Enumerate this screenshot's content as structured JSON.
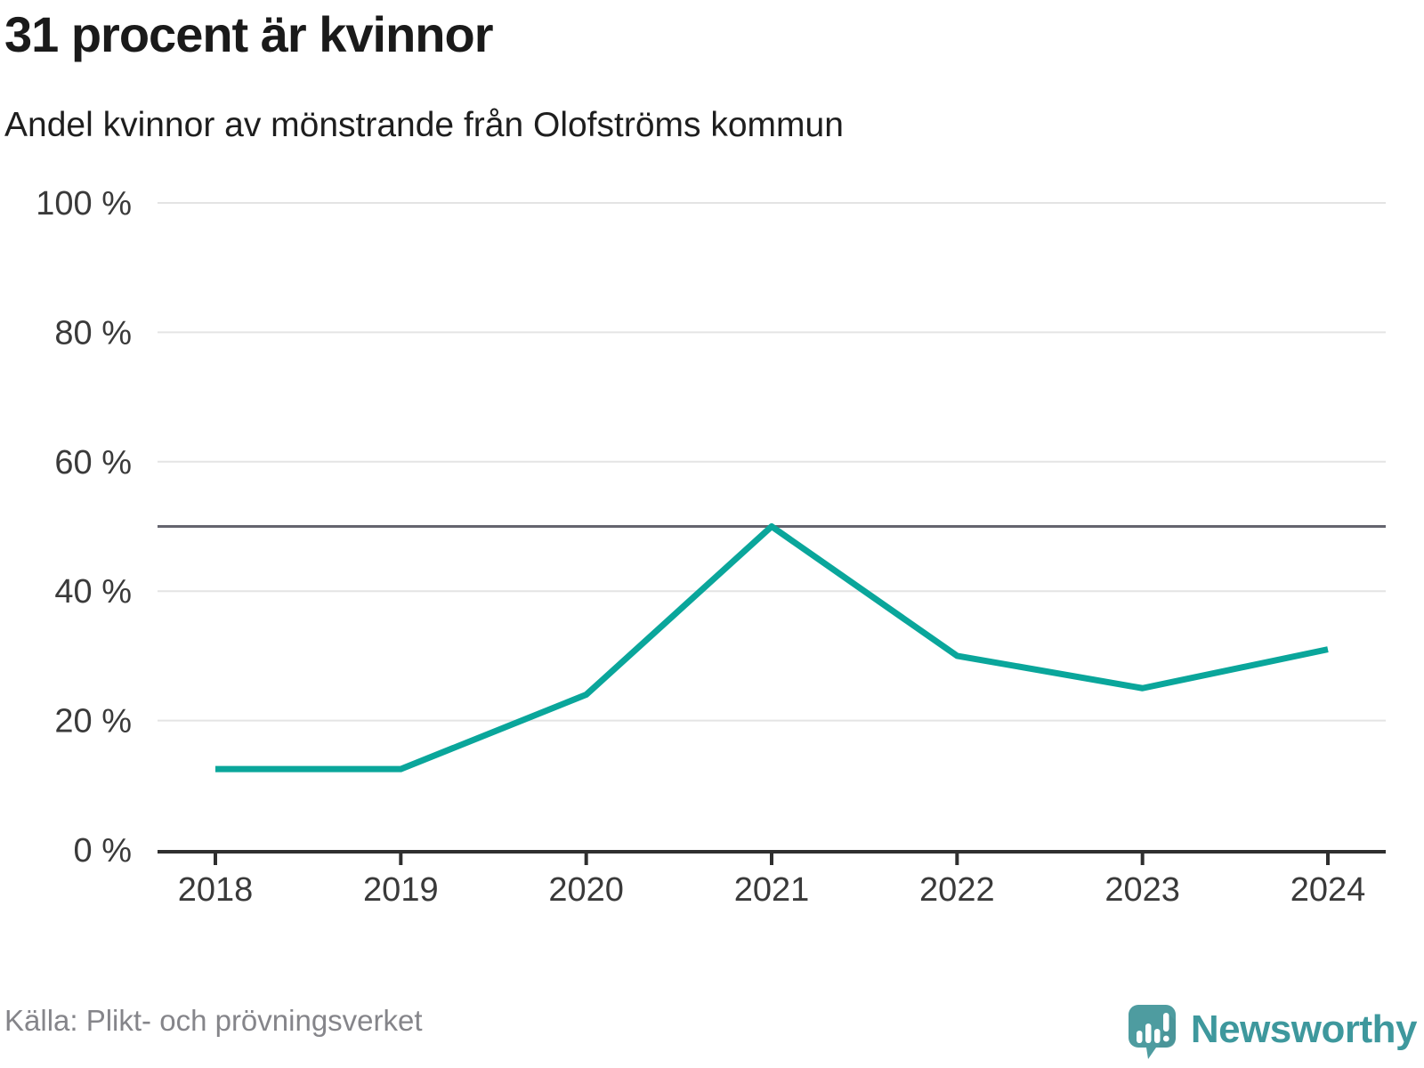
{
  "header": {
    "title": "31 procent är kvinnor",
    "subtitle": "Andel kvinnor av mönstrande från Olofströms kommun"
  },
  "chart_data": {
    "type": "line",
    "title": "31 procent är kvinnor",
    "subtitle": "Andel kvinnor av mönstrande från Olofströms kommun",
    "x": [
      2018,
      2019,
      2020,
      2021,
      2022,
      2023,
      2024
    ],
    "x_labels": [
      "2018",
      "2019",
      "2020",
      "2021",
      "2022",
      "2023",
      "2024"
    ],
    "series": [
      {
        "name": "Andel kvinnor av mönstrande",
        "values": [
          12.5,
          12.5,
          24,
          50,
          30,
          25,
          31
        ]
      }
    ],
    "ylim": [
      0,
      100
    ],
    "yticks": [
      0,
      20,
      40,
      60,
      80,
      100
    ],
    "ytick_labels": [
      "0 %",
      "20 %",
      "40 %",
      "60 %",
      "80 %",
      "100 %"
    ],
    "reference_line": 50,
    "grid": true,
    "legend": false
  },
  "colors": {
    "line": "#0aa69b",
    "grid": "#e4e4e4",
    "reference_line": "#64646e",
    "axis": "#2f2f2f",
    "tick_text": "#3a3a3a",
    "title_text": "#1a1a1a",
    "source_text": "#85858a",
    "brand_teal": "#3e989d",
    "logo_bubble": "#4e9ca0",
    "logo_shade": "#478f94"
  },
  "footer": {
    "source": "Källa: Plikt- och prövningsverket",
    "brand": "Newsworthy"
  }
}
